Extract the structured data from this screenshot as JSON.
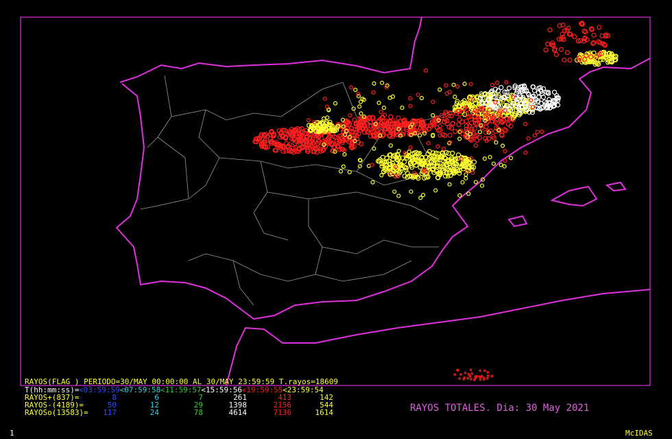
{
  "header": {
    "line": "RAYOS(FLAG ) PERIODO=30/MAY 00:00:00 AL 30/MAY 23:59:59 T.rayos=18609"
  },
  "legend": {
    "time_label": "T(hh:mm:ss)=",
    "periods": [
      {
        "label": "<03:59:59",
        "color": "#3050ff"
      },
      {
        "label": "<07:59:58",
        "color": "#30d0e0"
      },
      {
        "label": "<11:59:57",
        "color": "#30d030"
      },
      {
        "label": "<15:59:56",
        "color": "#ffffff"
      },
      {
        "label": "<19:59:55",
        "color": "#ff2020"
      },
      {
        "label": "<23:59:54",
        "color": "#ffff30"
      }
    ],
    "rows": [
      {
        "label": "RAYOS+(837)=",
        "values": [
          8,
          6,
          7,
          261,
          413,
          142
        ]
      },
      {
        "label": "RAYOS-(4189)=",
        "values": [
          50,
          12,
          29,
          1398,
          2156,
          544
        ]
      },
      {
        "label": "RAYOSo(13583)=",
        "values": [
          117,
          24,
          78,
          4614,
          7136,
          1614
        ]
      }
    ]
  },
  "title": "RAYOS TOTALES. Dia: 30 May 2021",
  "footer": {
    "frame_number": "1",
    "brand": "McIDAS"
  }
}
